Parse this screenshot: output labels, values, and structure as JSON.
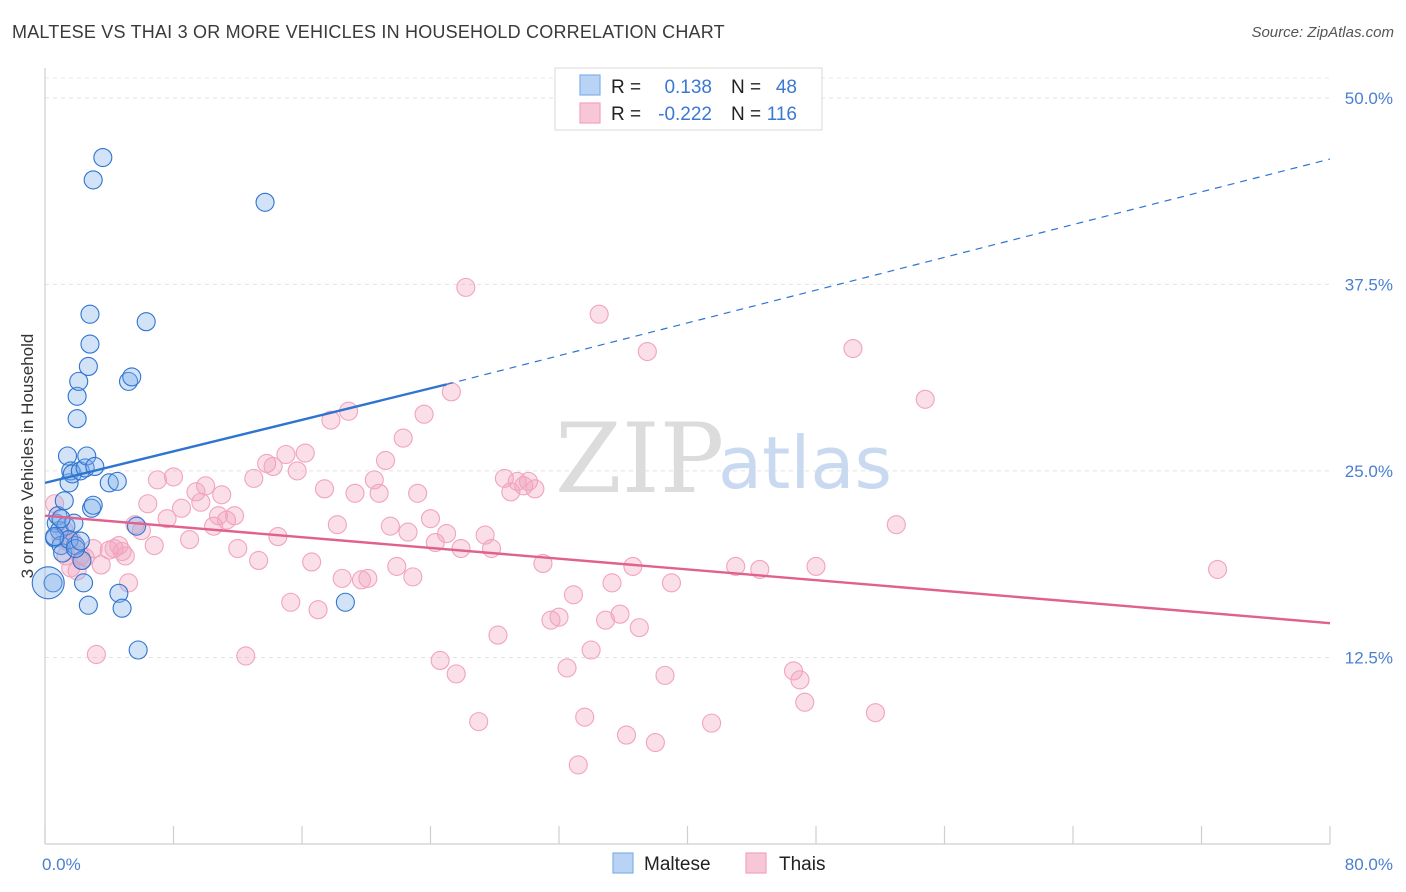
{
  "title": "MALTESE VS THAI 3 OR MORE VEHICLES IN HOUSEHOLD CORRELATION CHART",
  "source": "Source: ZipAtlas.com",
  "watermark": {
    "zip": "ZIP",
    "atlas": "atlas"
  },
  "colors": {
    "maltese": "#7fb0ea",
    "maltese_line": "#2f74d0",
    "thai": "#f2a3bd",
    "thai_line": "#e0608f",
    "axis_text": "#4a7fd0"
  },
  "legend": {
    "rows": [
      {
        "r_label": "R =",
        "r_value": "0.138",
        "n_label": "N =",
        "n_value": "48"
      },
      {
        "r_label": "R =",
        "r_value": "-0.222",
        "n_label": "N =",
        "n_value": "116"
      }
    ]
  },
  "chart_data": {
    "type": "scatter",
    "title": "MALTESE VS THAI 3 OR MORE VEHICLES IN HOUSEHOLD CORRELATION CHART",
    "xlabel": "",
    "ylabel": "3 or more Vehicles in Household",
    "xlim": [
      0,
      80
    ],
    "ylim": [
      0,
      52
    ],
    "x_tick_labels": [
      "0.0%",
      "80.0%"
    ],
    "y_ticks": [
      12.5,
      25.0,
      37.5,
      50.0
    ],
    "y_tick_labels": [
      "12.5%",
      "25.0%",
      "37.5%",
      "50.0%"
    ],
    "grid": "horizontal dashed",
    "legend_position": "top-center",
    "series": [
      {
        "name": "Maltese",
        "trend": {
          "x0": 0,
          "y0": 24.2,
          "x1": 25,
          "y1": 30.8,
          "dashed_to_x": 80,
          "dashed_to_y": 45.9
        },
        "points": [
          [
            0.5,
            17.5
          ],
          [
            0.6,
            20.5
          ],
          [
            0.7,
            21.5
          ],
          [
            0.8,
            22.0
          ],
          [
            0.9,
            21.0
          ],
          [
            1.0,
            20.0
          ],
          [
            1.1,
            19.5
          ],
          [
            1.2,
            23.0
          ],
          [
            1.3,
            21.3
          ],
          [
            1.4,
            26.0
          ],
          [
            1.5,
            24.2
          ],
          [
            1.6,
            25.0
          ],
          [
            1.7,
            24.8
          ],
          [
            1.8,
            21.5
          ],
          [
            1.9,
            20.0
          ],
          [
            2.0,
            30.0
          ],
          [
            2.0,
            28.5
          ],
          [
            2.1,
            31.0
          ],
          [
            2.2,
            25.0
          ],
          [
            2.3,
            19.0
          ],
          [
            2.4,
            17.5
          ],
          [
            2.5,
            25.2
          ],
          [
            2.6,
            26.0
          ],
          [
            2.7,
            32.0
          ],
          [
            2.7,
            16.0
          ],
          [
            2.8,
            33.5
          ],
          [
            2.8,
            35.5
          ],
          [
            2.9,
            22.5
          ],
          [
            3.0,
            22.7
          ],
          [
            3.0,
            44.5
          ],
          [
            3.1,
            25.3
          ],
          [
            3.6,
            46.0
          ],
          [
            4.0,
            24.2
          ],
          [
            4.5,
            24.3
          ],
          [
            4.6,
            16.8
          ],
          [
            4.8,
            15.8
          ],
          [
            5.2,
            31.0
          ],
          [
            5.4,
            31.3
          ],
          [
            5.7,
            21.3
          ],
          [
            5.8,
            13.0
          ],
          [
            6.3,
            35.0
          ],
          [
            13.7,
            43.0
          ],
          [
            1.5,
            20.4
          ],
          [
            1.9,
            19.8
          ],
          [
            2.2,
            20.3
          ],
          [
            18.7,
            16.2
          ],
          [
            1.0,
            21.8
          ],
          [
            0.6,
            20.6
          ]
        ]
      },
      {
        "name": "Thais",
        "trend": {
          "x0": 0,
          "y0": 22.0,
          "x1": 80,
          "y1": 14.8
        },
        "points": [
          [
            0.6,
            22.8
          ],
          [
            1.0,
            20.5
          ],
          [
            1.2,
            21.0
          ],
          [
            1.3,
            19.3
          ],
          [
            1.5,
            20.2
          ],
          [
            1.6,
            18.5
          ],
          [
            1.7,
            20.3
          ],
          [
            2.0,
            18.3
          ],
          [
            2.2,
            19.3
          ],
          [
            2.3,
            19.0
          ],
          [
            2.5,
            19.2
          ],
          [
            3.0,
            19.8
          ],
          [
            3.2,
            12.7
          ],
          [
            3.5,
            18.7
          ],
          [
            4.0,
            19.7
          ],
          [
            4.3,
            19.8
          ],
          [
            4.6,
            20.0
          ],
          [
            4.8,
            19.6
          ],
          [
            5.0,
            19.3
          ],
          [
            5.2,
            17.5
          ],
          [
            5.6,
            21.4
          ],
          [
            6.0,
            21.0
          ],
          [
            6.4,
            22.8
          ],
          [
            6.8,
            20.0
          ],
          [
            7.0,
            24.4
          ],
          [
            7.6,
            21.8
          ],
          [
            8.0,
            24.6
          ],
          [
            8.5,
            22.5
          ],
          [
            9.0,
            20.4
          ],
          [
            9.4,
            23.6
          ],
          [
            9.7,
            22.9
          ],
          [
            10.0,
            24.0
          ],
          [
            10.5,
            21.3
          ],
          [
            10.8,
            22.0
          ],
          [
            11.0,
            23.4
          ],
          [
            11.3,
            21.7
          ],
          [
            11.8,
            22.0
          ],
          [
            12.0,
            19.8
          ],
          [
            12.5,
            12.6
          ],
          [
            13.0,
            24.5
          ],
          [
            13.3,
            19.0
          ],
          [
            13.8,
            25.5
          ],
          [
            14.2,
            25.3
          ],
          [
            14.5,
            20.6
          ],
          [
            15.0,
            26.1
          ],
          [
            15.3,
            16.2
          ],
          [
            15.7,
            25.0
          ],
          [
            16.2,
            26.2
          ],
          [
            16.6,
            18.9
          ],
          [
            17.0,
            15.7
          ],
          [
            17.4,
            23.8
          ],
          [
            17.8,
            28.4
          ],
          [
            18.2,
            21.4
          ],
          [
            18.5,
            17.8
          ],
          [
            18.9,
            29.0
          ],
          [
            19.3,
            23.5
          ],
          [
            19.7,
            17.7
          ],
          [
            20.1,
            17.8
          ],
          [
            20.5,
            24.4
          ],
          [
            20.8,
            23.5
          ],
          [
            21.2,
            25.7
          ],
          [
            21.5,
            21.3
          ],
          [
            21.9,
            18.6
          ],
          [
            22.3,
            27.2
          ],
          [
            22.6,
            20.9
          ],
          [
            22.9,
            17.9
          ],
          [
            23.2,
            23.5
          ],
          [
            23.6,
            28.8
          ],
          [
            24.0,
            21.8
          ],
          [
            24.3,
            20.2
          ],
          [
            24.6,
            12.3
          ],
          [
            25.0,
            20.8
          ],
          [
            25.3,
            30.3
          ],
          [
            25.6,
            11.4
          ],
          [
            25.9,
            19.8
          ],
          [
            26.2,
            37.3
          ],
          [
            27.0,
            8.2
          ],
          [
            27.4,
            20.7
          ],
          [
            27.8,
            19.8
          ],
          [
            28.2,
            14.0
          ],
          [
            28.6,
            24.5
          ],
          [
            29.0,
            23.6
          ],
          [
            29.4,
            24.3
          ],
          [
            29.8,
            24.0
          ],
          [
            30.1,
            24.3
          ],
          [
            30.5,
            23.8
          ],
          [
            31.0,
            18.8
          ],
          [
            31.5,
            15.0
          ],
          [
            32.0,
            15.2
          ],
          [
            32.5,
            11.8
          ],
          [
            32.9,
            16.7
          ],
          [
            33.2,
            5.3
          ],
          [
            33.6,
            8.5
          ],
          [
            34.0,
            13.0
          ],
          [
            34.5,
            35.5
          ],
          [
            34.9,
            15.0
          ],
          [
            35.3,
            17.5
          ],
          [
            35.8,
            15.4
          ],
          [
            36.2,
            7.3
          ],
          [
            36.6,
            18.6
          ],
          [
            37.0,
            14.5
          ],
          [
            37.5,
            33.0
          ],
          [
            38.0,
            6.8
          ],
          [
            38.6,
            11.3
          ],
          [
            39.0,
            17.5
          ],
          [
            41.5,
            8.1
          ],
          [
            43.0,
            18.6
          ],
          [
            44.5,
            18.4
          ],
          [
            46.6,
            11.6
          ],
          [
            47.0,
            11.0
          ],
          [
            47.3,
            9.5
          ],
          [
            48.0,
            18.6
          ],
          [
            50.3,
            33.2
          ],
          [
            51.7,
            8.8
          ],
          [
            53.0,
            21.4
          ],
          [
            54.8,
            29.8
          ],
          [
            73.0,
            18.4
          ]
        ]
      }
    ]
  },
  "bottom_legend": [
    {
      "label": "Maltese"
    },
    {
      "label": "Thais"
    }
  ]
}
